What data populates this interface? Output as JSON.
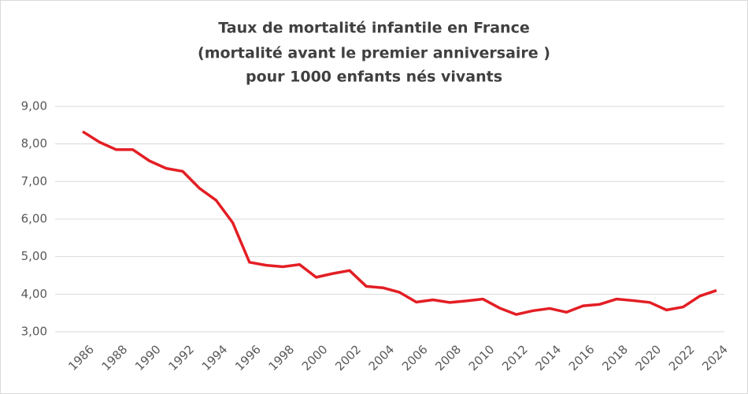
{
  "chart_data": {
    "type": "line",
    "title": [
      "Taux de mortalité infantile en France",
      "(mortalité avant le premier anniversaire )",
      "pour 1000 enfants nés vivants"
    ],
    "x": [
      1986,
      1987,
      1988,
      1989,
      1990,
      1991,
      1992,
      1993,
      1994,
      1995,
      1996,
      1997,
      1998,
      1999,
      2000,
      2001,
      2002,
      2003,
      2004,
      2005,
      2006,
      2007,
      2008,
      2009,
      2010,
      2011,
      2012,
      2013,
      2014,
      2015,
      2016,
      2017,
      2018,
      2019,
      2020,
      2021,
      2022,
      2023,
      2024
    ],
    "series": [
      {
        "name": "Taux de mortalité infantile",
        "color": "#e31e24",
        "values": [
          8.33,
          8.05,
          7.85,
          7.85,
          7.55,
          7.35,
          7.27,
          6.82,
          6.5,
          5.9,
          4.85,
          4.77,
          4.73,
          4.79,
          4.45,
          4.55,
          4.63,
          4.21,
          4.17,
          4.05,
          3.79,
          3.85,
          3.78,
          3.82,
          3.87,
          3.63,
          3.46,
          3.56,
          3.62,
          3.52,
          3.69,
          3.73,
          3.87,
          3.83,
          3.78,
          3.58,
          3.66,
          3.95,
          4.1
        ]
      }
    ],
    "xlim": [
      1986,
      2024
    ],
    "xticks": [
      1986,
      1988,
      1990,
      1992,
      1994,
      1996,
      1998,
      2000,
      2002,
      2004,
      2006,
      2008,
      2010,
      2012,
      2014,
      2016,
      2018,
      2020,
      2022,
      2024
    ],
    "ylim": [
      3,
      9
    ],
    "yticks": [
      {
        "value": 3,
        "label": "3,00"
      },
      {
        "value": 4,
        "label": "4,00"
      },
      {
        "value": 5,
        "label": "5,00"
      },
      {
        "value": 6,
        "label": "6,00"
      },
      {
        "value": 7,
        "label": "7,00"
      },
      {
        "value": 8,
        "label": "8,00"
      },
      {
        "value": 9,
        "label": "9,00"
      }
    ],
    "grid": true
  }
}
